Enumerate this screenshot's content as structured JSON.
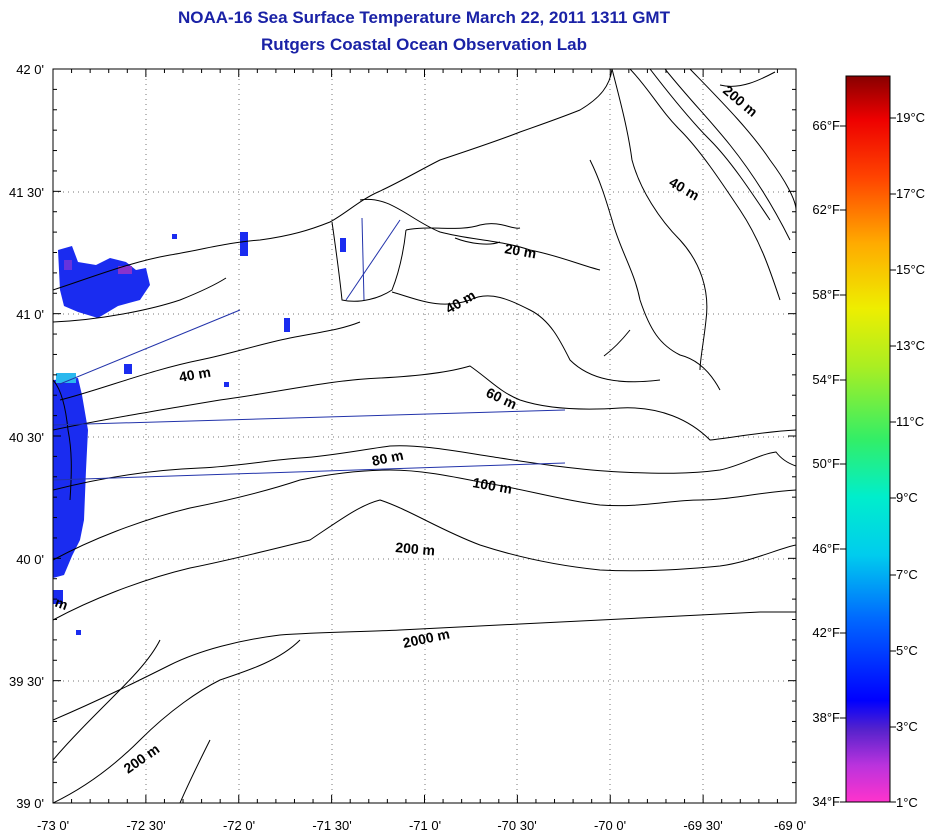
{
  "title": {
    "line1": "NOAA-16 Sea Surface Temperature March 22, 2011 1311 GMT",
    "line2": "Rutgers Coastal Ocean Observation Lab"
  },
  "axes": {
    "lat_labels": [
      "42 0'",
      "41 30'",
      "41 0'",
      "40 30'",
      "40 0'",
      "39 30'",
      "39 0'"
    ],
    "lon_labels": [
      "-73 0'",
      "-72 30'",
      "-72 0'",
      "-71 30'",
      "-71 0'",
      "-70 30'",
      "-70 0'",
      "-69 30'",
      "-69 0'"
    ]
  },
  "contours": {
    "labels": [
      "200 m",
      "40 m",
      "20 m",
      "40 m",
      "40 m",
      "60 m",
      "80 m",
      "100 m",
      "200 m",
      "2000 m",
      "200 m",
      "m"
    ]
  },
  "colorbar": {
    "fahrenheit": [
      "66°F",
      "62°F",
      "58°F",
      "54°F",
      "50°F",
      "46°F",
      "42°F",
      "38°F",
      "34°F"
    ],
    "celsius": [
      "19°C",
      "17°C",
      "15°C",
      "13°C",
      "11°C",
      "9°C",
      "7°C",
      "5°C",
      "3°C",
      "1°C"
    ]
  },
  "colors": {
    "title": "#1a22a6",
    "sst_blue": "#1a2cf0",
    "sst_cyan": "#2ab8ee",
    "tracks": "#2233aa"
  }
}
